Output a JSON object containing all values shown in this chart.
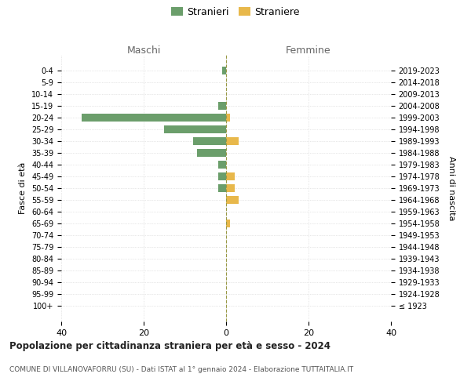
{
  "age_groups": [
    "100+",
    "95-99",
    "90-94",
    "85-89",
    "80-84",
    "75-79",
    "70-74",
    "65-69",
    "60-64",
    "55-59",
    "50-54",
    "45-49",
    "40-44",
    "35-39",
    "30-34",
    "25-29",
    "20-24",
    "15-19",
    "10-14",
    "5-9",
    "0-4"
  ],
  "birth_years": [
    "≤ 1923",
    "1924-1928",
    "1929-1933",
    "1934-1938",
    "1939-1943",
    "1944-1948",
    "1949-1953",
    "1954-1958",
    "1959-1963",
    "1964-1968",
    "1969-1973",
    "1974-1978",
    "1979-1983",
    "1984-1988",
    "1989-1993",
    "1994-1998",
    "1999-2003",
    "2004-2008",
    "2009-2013",
    "2014-2018",
    "2019-2023"
  ],
  "stranieri_maschi": [
    0,
    0,
    0,
    0,
    0,
    0,
    0,
    0,
    0,
    0,
    2,
    2,
    2,
    7,
    8,
    15,
    35,
    2,
    0,
    0,
    1
  ],
  "straniere_femmine": [
    0,
    0,
    0,
    0,
    0,
    0,
    0,
    1,
    0,
    3,
    2,
    2,
    0,
    0,
    3,
    0,
    1,
    0,
    0,
    0,
    0
  ],
  "color_maschi": "#6b9e6b",
  "color_femmine": "#e8b84b",
  "title": "Popolazione per cittadinanza straniera per età e sesso - 2024",
  "subtitle": "COMUNE DI VILLANOVAFORRU (SU) - Dati ISTAT al 1° gennaio 2024 - Elaborazione TUTTAITALIA.IT",
  "xlabel_left": "Maschi",
  "xlabel_right": "Femmine",
  "ylabel_left": "Fasce di età",
  "ylabel_right": "Anni di nascita",
  "legend_stranieri": "Stranieri",
  "legend_straniere": "Straniere",
  "xlim": 40,
  "background_color": "#ffffff",
  "grid_color": "#d0d0d0"
}
